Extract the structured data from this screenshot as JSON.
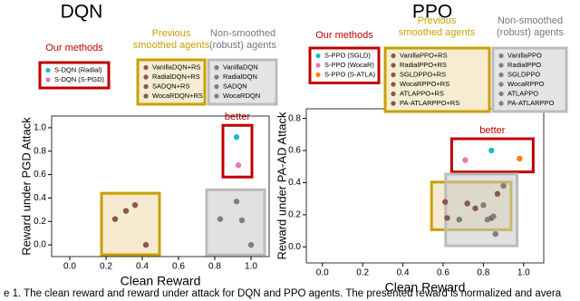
{
  "caption": "e 1. The clean reward and reward under attack for DQN and PPO agents. The presented reward is normalized and avera",
  "chart_data": [
    {
      "type": "scatter",
      "title": "DQN",
      "xlabel": "Clean Reward",
      "ylabel": "Reward under PGD Attack",
      "annotation": "better",
      "xlim": [
        -0.1,
        1.1
      ],
      "ylim": [
        -0.1,
        1.1
      ],
      "xticks": [
        {
          "value": 0,
          "label": "0.0"
        },
        0.2,
        0.4,
        0.6,
        0.8,
        {
          "value": 1,
          "label": "1.0"
        }
      ],
      "yticks": [
        {
          "value": 0,
          "label": "0.0"
        },
        0.2,
        0.4,
        0.6,
        0.8,
        {
          "value": 1,
          "label": "1.0"
        }
      ],
      "groups": [
        {
          "name": "Our methods",
          "color": "#c00000",
          "series": [
            {
              "name": "S-DQN (Radial)",
              "color": "#17becf",
              "x": [
                0.92
              ],
              "values": [
                0.92
              ]
            },
            {
              "name": "S-DQN (S-PGD)",
              "color": "#e377c2",
              "x": [
                0.93
              ],
              "values": [
                0.68
              ]
            }
          ]
        },
        {
          "name": "Previous smoothed agents",
          "color": "#c8a000",
          "series": [
            {
              "name": "VanillaDQN+RS",
              "color": "#8c564b",
              "x": [
                0.42
              ],
              "values": [
                0.0
              ]
            },
            {
              "name": "RadialDQN+RS",
              "color": "#8c564b",
              "x": [
                0.25
              ],
              "values": [
                0.22
              ]
            },
            {
              "name": "SADQN+RS",
              "color": "#8c564b",
              "x": [
                0.31
              ],
              "values": [
                0.29
              ]
            },
            {
              "name": "WocaRDQN+RS",
              "color": "#8c564b",
              "x": [
                0.36
              ],
              "values": [
                0.34
              ]
            }
          ]
        },
        {
          "name": "Non-smoothed (robust) agents",
          "color": "#bbbbbb",
          "series": [
            {
              "name": "VanillaDQN",
              "color": "#7f7f7f",
              "x": [
                1.0
              ],
              "values": [
                0.0
              ]
            },
            {
              "name": "RadialDQN",
              "color": "#7f7f7f",
              "x": [
                0.83
              ],
              "values": [
                0.22
              ]
            },
            {
              "name": "SADQN",
              "color": "#7f7f7f",
              "x": [
                0.95
              ],
              "values": [
                0.21
              ]
            },
            {
              "name": "WocaRDQN",
              "color": "#7f7f7f",
              "x": [
                0.92
              ],
              "values": [
                0.37
              ]
            }
          ]
        }
      ]
    },
    {
      "type": "scatter",
      "title": "PPO",
      "xlabel": "Clean Reward",
      "ylabel": "Reward under PA-AD Attack",
      "annotation": "better",
      "xlim": [
        -0.08,
        1.1
      ],
      "ylim": [
        -0.1,
        0.86
      ],
      "xticks": [
        {
          "value": 0,
          "label": "0.0"
        },
        0.2,
        0.4,
        0.6,
        0.8,
        {
          "value": 1,
          "label": "1.0"
        }
      ],
      "yticks": [
        {
          "value": 0,
          "label": "0.0"
        },
        0.2,
        0.4,
        0.6,
        0.8
      ],
      "groups": [
        {
          "name": "Our methods",
          "color": "#c00000",
          "series": [
            {
              "name": "S-PPO (SGLD)",
              "color": "#17becf",
              "x": [
                0.84
              ],
              "values": [
                0.6
              ]
            },
            {
              "name": "S-PPO (WocaR)",
              "color": "#e377c2",
              "x": [
                0.71
              ],
              "values": [
                0.54
              ]
            },
            {
              "name": "S-PPO (S-ATLA)",
              "color": "#ff7f0e",
              "x": [
                0.98
              ],
              "values": [
                0.55
              ]
            }
          ]
        },
        {
          "name": "Previous smoothed agents",
          "color": "#c8a000",
          "series": [
            {
              "name": "VanillaPPO+RS",
              "color": "#8c564b",
              "x": [
                0.62
              ],
              "values": [
                0.18
              ]
            },
            {
              "name": "RadialPPO+RS",
              "color": "#8c564b",
              "x": [
                0.61
              ],
              "values": [
                0.28
              ]
            },
            {
              "name": "SGLDPPO+RS",
              "color": "#8c564b",
              "x": [
                0.72
              ],
              "values": [
                0.27
              ]
            },
            {
              "name": "WocaRPPO+RS",
              "color": "#8c564b",
              "x": [
                0.76
              ],
              "values": [
                0.24
              ]
            },
            {
              "name": "ATLAPPO+RS",
              "color": "#8c564b",
              "x": [
                0.84
              ],
              "values": [
                0.18
              ]
            },
            {
              "name": "PA-ATLARPPO+RS",
              "color": "#8c564b",
              "x": [
                0.87
              ],
              "values": [
                0.33
              ]
            }
          ]
        },
        {
          "name": "Non-smoothed (robust) agents",
          "color": "#bbbbbb",
          "series": [
            {
              "name": "VanillaPPO",
              "color": "#7f7f7f",
              "x": [
                0.86
              ],
              "values": [
                0.08
              ]
            },
            {
              "name": "RadialPPO",
              "color": "#7f7f7f",
              "x": [
                0.68
              ],
              "values": [
                0.17
              ]
            },
            {
              "name": "SGLDPPO",
              "color": "#7f7f7f",
              "x": [
                0.82
              ],
              "values": [
                0.17
              ]
            },
            {
              "name": "WocaRPPO",
              "color": "#7f7f7f",
              "x": [
                0.8
              ],
              "values": [
                0.26
              ]
            },
            {
              "name": "ATLAPPO",
              "color": "#7f7f7f",
              "x": [
                0.85
              ],
              "values": [
                0.19
              ]
            },
            {
              "name": "PA-ATLARPPO",
              "color": "#7f7f7f",
              "x": [
                0.9
              ],
              "values": [
                0.38
              ]
            }
          ]
        }
      ]
    }
  ]
}
